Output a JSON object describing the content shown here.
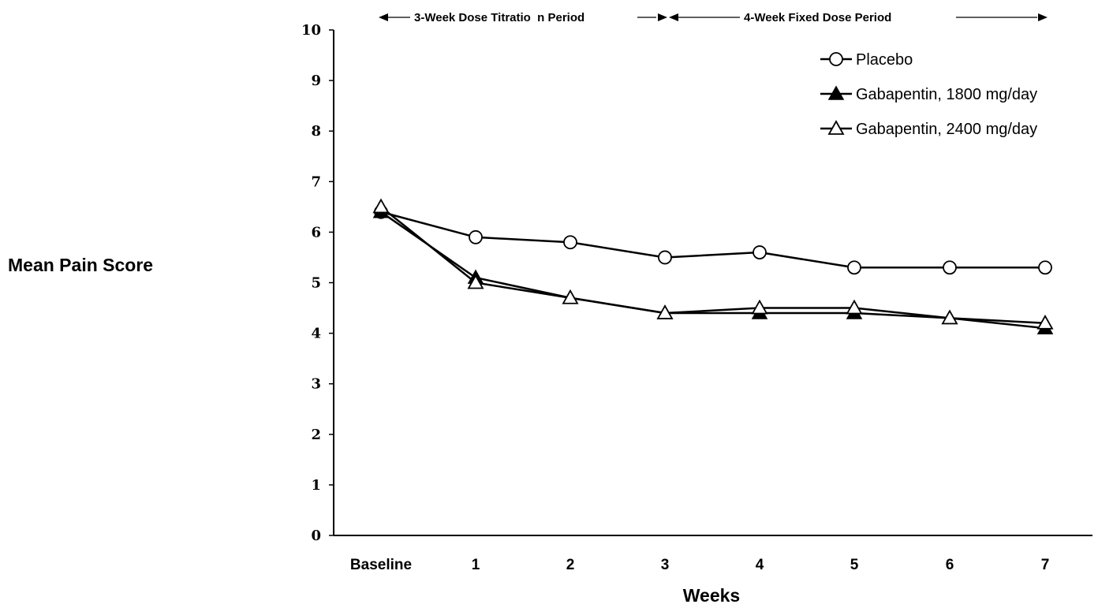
{
  "chart_data": {
    "type": "line",
    "title": "",
    "xlabel": "Weeks",
    "ylabel": "Mean Pain Score",
    "categories": [
      "Baseline",
      "1",
      "2",
      "3",
      "4",
      "5",
      "6",
      "7"
    ],
    "ylim": [
      0,
      10
    ],
    "yticks": [
      "0",
      "1",
      "2",
      "3",
      "4",
      "5",
      "6",
      "7",
      "8",
      "9",
      "10"
    ],
    "grid": false,
    "legend_position": "top-right",
    "series": [
      {
        "name": "Placebo",
        "marker": "open-circle",
        "values": [
          6.4,
          5.9,
          5.8,
          5.5,
          5.6,
          5.3,
          5.3,
          5.3
        ]
      },
      {
        "name": "Gabapentin, 1800 mg/day",
        "marker": "filled-triangle",
        "values": [
          6.4,
          5.1,
          4.7,
          4.4,
          4.4,
          4.4,
          4.3,
          4.1
        ]
      },
      {
        "name": "Gabapentin, 2400 mg/day",
        "marker": "open-triangle",
        "values": [
          6.5,
          5.0,
          4.7,
          4.4,
          4.5,
          4.5,
          4.3,
          4.2
        ]
      }
    ],
    "annotations": [
      {
        "text": "3-Week Dose Titratio  n Period",
        "span": [
          "Baseline",
          "3"
        ]
      },
      {
        "text": "4-Week Fixed Dose Period",
        "span": [
          "3",
          "7"
        ]
      }
    ]
  }
}
